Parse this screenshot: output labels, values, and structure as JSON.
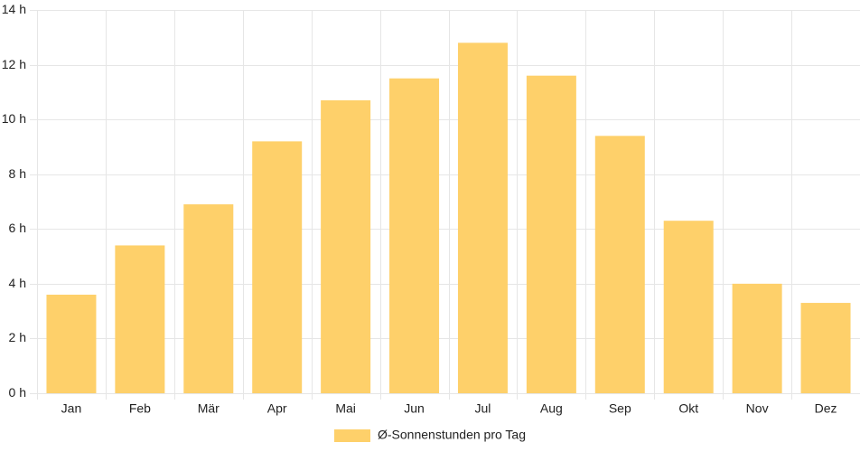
{
  "chart_data": {
    "type": "bar",
    "categories": [
      "Jan",
      "Feb",
      "Mär",
      "Apr",
      "Mai",
      "Jun",
      "Jul",
      "Aug",
      "Sep",
      "Okt",
      "Nov",
      "Dez"
    ],
    "series": [
      {
        "name": "Ø-Sonnenstunden pro Tag",
        "values": [
          3.6,
          5.4,
          6.9,
          9.2,
          10.7,
          11.5,
          12.8,
          11.6,
          9.4,
          6.3,
          4.0,
          3.3
        ],
        "color": "#fed06a"
      }
    ],
    "ylim": [
      0,
      14
    ],
    "y_ticks": [
      0,
      2,
      4,
      6,
      8,
      10,
      12,
      14
    ],
    "y_tick_suffix": " h",
    "grid": true,
    "legend": "bottom"
  }
}
